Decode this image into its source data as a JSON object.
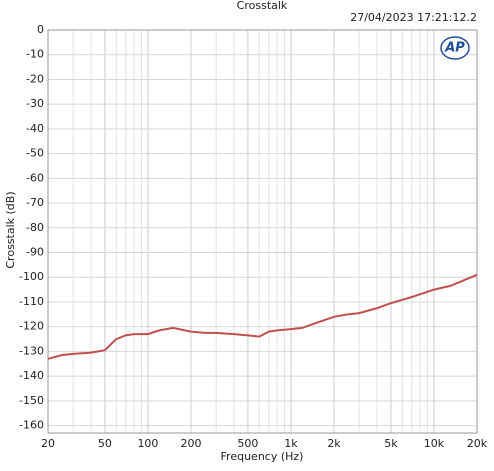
{
  "chart_data": {
    "type": "line",
    "title": "Crosstalk",
    "timestamp": "27/04/2023 17:21:12.2",
    "logo": "AP",
    "x_label": "Frequency (Hz)",
    "y_label": "Crosstalk (dB)",
    "xscale": "log",
    "grid": true,
    "xlim": [
      20,
      20000
    ],
    "ylim": [
      -163,
      0
    ],
    "xticks": [
      20,
      50,
      100,
      200,
      500,
      {
        "value": 1000,
        "label": "1k"
      },
      {
        "value": 2000,
        "label": "2k"
      },
      {
        "value": 5000,
        "label": "5k"
      },
      {
        "value": 10000,
        "label": "10k"
      },
      {
        "value": 20000,
        "label": "20k"
      }
    ],
    "yticks": [
      0,
      -10,
      -20,
      -30,
      -40,
      -50,
      -60,
      -70,
      -80,
      -90,
      -100,
      -110,
      -120,
      -130,
      -140,
      -150,
      -160
    ],
    "x": [
      20,
      25,
      30,
      40,
      50,
      60,
      70,
      80,
      100,
      120,
      150,
      200,
      250,
      300,
      400,
      500,
      600,
      700,
      800,
      1000,
      1200,
      1500,
      2000,
      2500,
      3000,
      4000,
      5000,
      7000,
      10000,
      13000,
      20000
    ],
    "series": [
      {
        "name": "Crosstalk",
        "color": "#c0504d",
        "values": [
          -133,
          -131.5,
          -131,
          -130.5,
          -129.5,
          -125,
          -123.5,
          -123,
          -123,
          -121.5,
          -120.5,
          -122,
          -122.5,
          -122.5,
          -123,
          -123.5,
          -124,
          -122,
          -121.5,
          -121,
          -120.5,
          -118.5,
          -116,
          -115,
          -114.5,
          -112.5,
          -110.5,
          -108,
          -105,
          -103.5,
          -99
        ]
      }
    ]
  }
}
